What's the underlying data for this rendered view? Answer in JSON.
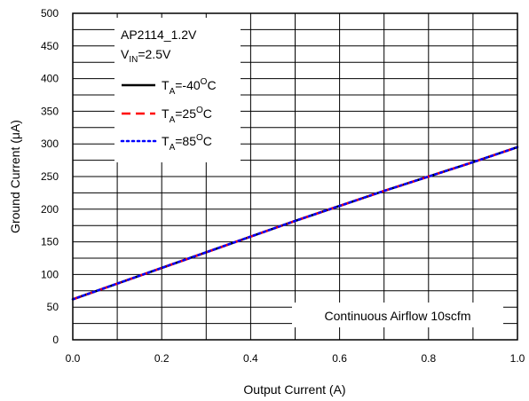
{
  "chart_data": {
    "type": "line",
    "xlabel": "Output Current (A)",
    "ylabel": "Ground Current (μA)",
    "xlim": [
      0.0,
      1.0
    ],
    "ylim": [
      0,
      500
    ],
    "x_ticks": [
      "0.0",
      "0.2",
      "0.4",
      "0.6",
      "0.8",
      "1.0"
    ],
    "y_ticks": [
      "0",
      "50",
      "100",
      "150",
      "200",
      "250",
      "300",
      "350",
      "400",
      "450",
      "500"
    ],
    "grid": true,
    "legend_position": "top-left",
    "legend_header": {
      "line1": "AP2114_1.2V",
      "line2_main": "V",
      "line2_sub": "IN",
      "line2_rest": "=2.5V"
    },
    "annotation": "Continuous Airflow 10scfm",
    "series": [
      {
        "name": "TA=-40OC",
        "label_main": "T",
        "label_sub": "A",
        "label_value": "=-40",
        "label_sup": "O",
        "label_unit": "C",
        "color": "#000000",
        "style": "solid",
        "x": [
          0.0,
          0.1,
          0.2,
          0.3,
          0.4,
          0.5,
          0.6,
          0.7,
          0.8,
          0.9,
          1.0
        ],
        "y": [
          62,
          86,
          110,
          134,
          158,
          182,
          205,
          228,
          250,
          272,
          295
        ]
      },
      {
        "name": "TA=25OC",
        "label_main": "T",
        "label_sub": "A",
        "label_value": "=25",
        "label_sup": "O",
        "label_unit": "C",
        "color": "#ff0000",
        "style": "dashed",
        "x": [
          0.0,
          0.1,
          0.2,
          0.3,
          0.4,
          0.5,
          0.6,
          0.7,
          0.8,
          0.9,
          1.0
        ],
        "y": [
          62,
          86,
          110,
          134,
          158,
          182,
          205,
          228,
          250,
          272,
          295
        ]
      },
      {
        "name": "TA=85OC",
        "label_main": "T",
        "label_sub": "A",
        "label_value": "=85",
        "label_sup": "O",
        "label_unit": "C",
        "color": "#0000ff",
        "style": "dotted",
        "x": [
          0.0,
          0.1,
          0.2,
          0.3,
          0.4,
          0.5,
          0.6,
          0.7,
          0.8,
          0.9,
          1.0
        ],
        "y": [
          62,
          86,
          110,
          134,
          158,
          182,
          205,
          228,
          250,
          272,
          295
        ]
      }
    ]
  }
}
